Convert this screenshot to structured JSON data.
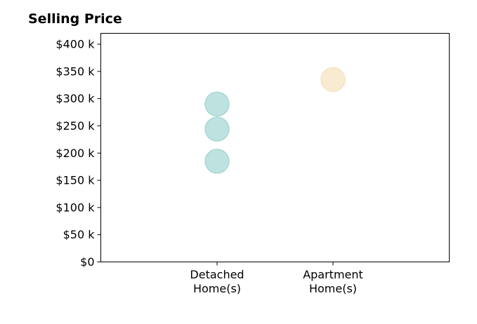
{
  "chart_data": {
    "type": "scatter",
    "title": "Selling Price",
    "xlabel": "",
    "ylabel": "",
    "categories": [
      {
        "lines": [
          "Detached",
          "Home(s)"
        ],
        "color": "#a8d8d4"
      },
      {
        "lines": [
          "Apartment",
          "Home(s)"
        ],
        "color": "#f6e4c2"
      }
    ],
    "points": [
      {
        "category": 0,
        "y": 290000
      },
      {
        "category": 0,
        "y": 244000
      },
      {
        "category": 0,
        "y": 185000
      },
      {
        "category": 1,
        "y": 335000
      }
    ],
    "ylim": [
      0,
      420000
    ],
    "yticks": [
      0,
      50000,
      100000,
      150000,
      200000,
      250000,
      300000,
      350000,
      400000
    ],
    "ytick_labels": [
      "$0",
      "$50 k",
      "$100 k",
      "$150 k",
      "$200 k",
      "$250 k",
      "$300 k",
      "$350 k",
      "$400 k"
    ],
    "grid": false,
    "legend": "none"
  }
}
